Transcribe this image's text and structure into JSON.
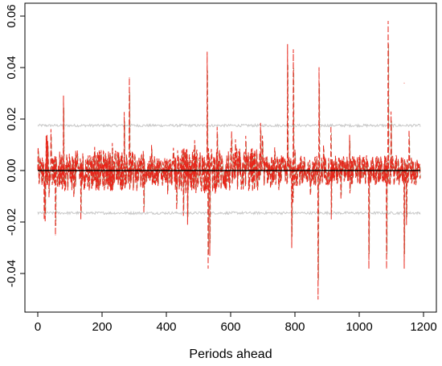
{
  "chart_data": {
    "type": "line",
    "title": "",
    "xlabel": "Periods ahead",
    "ylabel": "",
    "xlim": [
      0,
      1200
    ],
    "ylim": [
      -0.055,
      0.065
    ],
    "x_ticks": [
      0,
      200,
      400,
      600,
      800,
      1000,
      1200
    ],
    "x_tick_labels": [
      "0",
      "200",
      "400",
      "600",
      "800",
      "1000",
      "1200"
    ],
    "y_ticks": [
      -0.04,
      -0.02,
      0.0,
      0.02,
      0.04,
      0.06
    ],
    "y_tick_labels": [
      "-0.04",
      "-0.02",
      "0.00",
      "0.02",
      "0.04",
      "0.06"
    ],
    "grid": false,
    "legend": "none",
    "n_periods": 1190,
    "colors": {
      "series": "#e8261b",
      "series_shadow": "#8a5a2b",
      "band": "#c8c8c8",
      "zero_line": "#000000",
      "frame": "#000000"
    },
    "series": [
      {
        "style": "dashed",
        "peaks": [
          {
            "x": 80,
            "y": 0.029
          },
          {
            "x": 285,
            "y": 0.036
          },
          {
            "x": 527,
            "y": 0.046
          },
          {
            "x": 777,
            "y": 0.049
          },
          {
            "x": 795,
            "y": 0.047
          },
          {
            "x": 875,
            "y": 0.04
          },
          {
            "x": 1090,
            "y": 0.058
          },
          {
            "x": 1140,
            "y": 0.034
          }
        ],
        "troughs": [
          {
            "x": 55,
            "y": -0.025
          },
          {
            "x": 530,
            "y": -0.038
          },
          {
            "x": 535,
            "y": -0.033
          },
          {
            "x": 790,
            "y": -0.03
          },
          {
            "x": 872,
            "y": -0.05
          },
          {
            "x": 1030,
            "y": -0.038
          },
          {
            "x": 1085,
            "y": -0.038
          },
          {
            "x": 1140,
            "y": -0.038
          }
        ]
      },
      {
        "style": "solid",
        "values_constant": 0.0
      }
    ],
    "bands": [
      {
        "level": 0.0175,
        "jitter": 0.0005
      },
      {
        "level": -0.0165,
        "jitter": 0.0005
      }
    ]
  }
}
